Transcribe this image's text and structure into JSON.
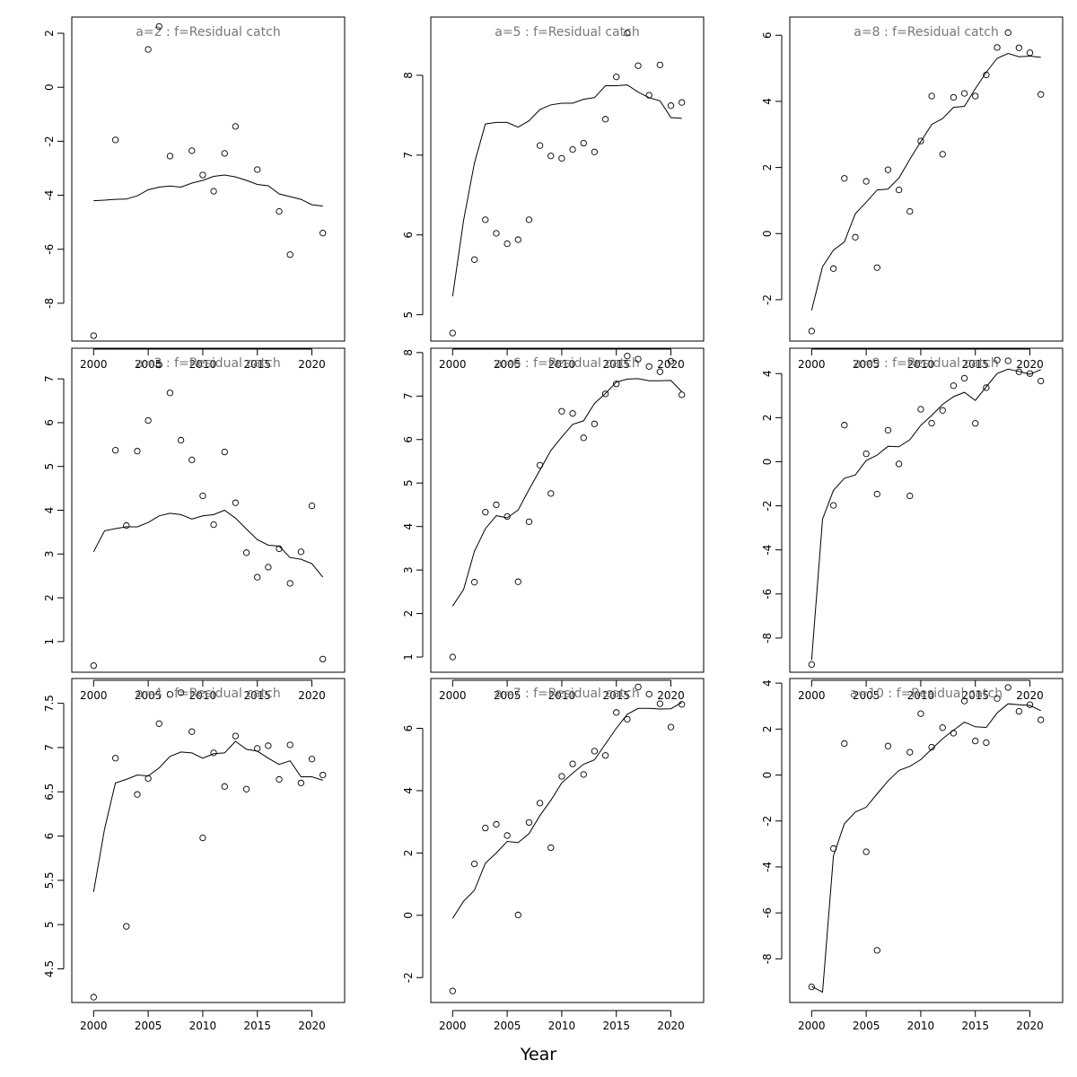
{
  "figure": {
    "xlabel": "Year"
  },
  "chart_data": [
    {
      "type": "scatter",
      "title": "a=2  :  f=Residual catch",
      "xlim": [
        1998,
        2023
      ],
      "ylim": [
        -9.4,
        2.6
      ],
      "xticks": [
        2000,
        2005,
        2010,
        2015,
        2020
      ],
      "yticks": [
        -8,
        -6,
        -4,
        -2,
        0,
        2
      ],
      "x": [
        2000,
        2002,
        2005,
        2006,
        2007,
        2009,
        2010,
        2011,
        2012,
        2013,
        2015,
        2017,
        2018,
        2021
      ],
      "y": [
        -9.2,
        -1.95,
        1.4,
        2.25,
        -2.55,
        -2.35,
        -3.25,
        -3.85,
        -2.45,
        -1.45,
        -3.05,
        -4.6,
        -6.2,
        -5.4
      ],
      "fit_x": [
        2000,
        2001,
        2002,
        2003,
        2004,
        2005,
        2006,
        2007,
        2008,
        2009,
        2010,
        2011,
        2012,
        2013,
        2014,
        2015,
        2016,
        2017,
        2018,
        2019,
        2020,
        2021
      ],
      "fit_y": [
        -4.2,
        -4.18,
        -4.15,
        -4.14,
        -4.02,
        -3.8,
        -3.7,
        -3.66,
        -3.7,
        -3.55,
        -3.45,
        -3.3,
        -3.25,
        -3.32,
        -3.45,
        -3.6,
        -3.65,
        -3.95,
        -4.05,
        -4.15,
        -4.35,
        -4.4
      ]
    },
    {
      "type": "scatter",
      "title": "a=3  :  f=Residual catch",
      "xlim": [
        1998,
        2023
      ],
      "ylim": [
        0.3,
        7.7
      ],
      "xticks": [
        2000,
        2005,
        2010,
        2015,
        2020
      ],
      "yticks": [
        1,
        2,
        3,
        4,
        5,
        6,
        7
      ],
      "x": [
        2000,
        2002,
        2003,
        2004,
        2005,
        2006,
        2007,
        2008,
        2009,
        2010,
        2011,
        2012,
        2013,
        2014,
        2015,
        2016,
        2017,
        2018,
        2019,
        2020,
        2021
      ],
      "y": [
        0.45,
        5.37,
        3.65,
        5.35,
        6.05,
        7.32,
        6.68,
        5.6,
        5.15,
        4.33,
        3.67,
        5.33,
        4.17,
        3.03,
        2.47,
        2.7,
        3.12,
        2.33,
        3.05,
        4.1,
        0.6
      ],
      "fit_x": [
        2000,
        2001,
        2002,
        2003,
        2004,
        2005,
        2006,
        2007,
        2008,
        2009,
        2010,
        2011,
        2012,
        2013,
        2014,
        2015,
        2016,
        2017,
        2018,
        2019,
        2020,
        2021
      ],
      "fit_y": [
        3.05,
        3.53,
        3.58,
        3.62,
        3.62,
        3.72,
        3.87,
        3.93,
        3.9,
        3.8,
        3.87,
        3.9,
        4.0,
        3.82,
        3.57,
        3.33,
        3.2,
        3.18,
        2.92,
        2.88,
        2.78,
        2.47
      ]
    },
    {
      "type": "scatter",
      "title": "a=4  :  f=Residual catch",
      "xlim": [
        1998,
        2023
      ],
      "ylim": [
        4.12,
        7.78
      ],
      "xticks": [
        2000,
        2005,
        2010,
        2015,
        2020
      ],
      "yticks": [
        4.5,
        5.0,
        5.5,
        6.0,
        6.5,
        7.0,
        7.5
      ],
      "x": [
        2000,
        2002,
        2003,
        2004,
        2005,
        2006,
        2007,
        2008,
        2009,
        2010,
        2011,
        2012,
        2013,
        2014,
        2015,
        2016,
        2017,
        2018,
        2019,
        2020,
        2021
      ],
      "y": [
        4.18,
        6.88,
        4.98,
        6.47,
        6.65,
        7.27,
        7.6,
        7.62,
        7.18,
        5.98,
        6.94,
        6.56,
        7.13,
        6.53,
        6.99,
        7.02,
        6.64,
        7.03,
        6.6,
        6.87,
        6.69
      ],
      "fit_x": [
        2000,
        2001,
        2002,
        2003,
        2004,
        2005,
        2006,
        2007,
        2008,
        2009,
        2010,
        2011,
        2012,
        2013,
        2014,
        2015,
        2016,
        2017,
        2018,
        2019,
        2020,
        2021
      ],
      "fit_y": [
        5.37,
        6.08,
        6.6,
        6.64,
        6.69,
        6.68,
        6.77,
        6.9,
        6.95,
        6.94,
        6.88,
        6.93,
        6.94,
        7.07,
        6.98,
        6.96,
        6.88,
        6.81,
        6.85,
        6.67,
        6.67,
        6.63
      ]
    },
    {
      "type": "scatter",
      "title": "a=5  :  f=Residual catch",
      "xlim": [
        1998,
        2023
      ],
      "ylim": [
        4.67,
        8.73
      ],
      "xticks": [
        2000,
        2005,
        2010,
        2015,
        2020
      ],
      "yticks": [
        5,
        6,
        7,
        8
      ],
      "x": [
        2000,
        2002,
        2003,
        2004,
        2005,
        2006,
        2007,
        2008,
        2009,
        2010,
        2011,
        2012,
        2013,
        2014,
        2015,
        2016,
        2017,
        2018,
        2019,
        2020,
        2021
      ],
      "y": [
        4.77,
        5.69,
        6.19,
        6.02,
        5.89,
        5.94,
        6.19,
        7.12,
        6.99,
        6.96,
        7.07,
        7.15,
        7.04,
        7.45,
        7.98,
        8.53,
        8.12,
        7.75,
        8.13,
        7.62,
        7.66
      ],
      "fit_x": [
        2000,
        2001,
        2002,
        2003,
        2004,
        2005,
        2006,
        2007,
        2008,
        2009,
        2010,
        2011,
        2012,
        2013,
        2014,
        2015,
        2016,
        2017,
        2018,
        2019,
        2020,
        2021
      ],
      "fit_y": [
        5.23,
        6.18,
        6.9,
        7.39,
        7.41,
        7.41,
        7.35,
        7.43,
        7.57,
        7.63,
        7.65,
        7.65,
        7.7,
        7.72,
        7.87,
        7.87,
        7.88,
        7.79,
        7.72,
        7.68,
        7.47,
        7.46
      ]
    },
    {
      "type": "scatter",
      "title": "a=6  :  f=Residual catch",
      "xlim": [
        1998,
        2023
      ],
      "ylim": [
        0.65,
        8.1
      ],
      "xticks": [
        2000,
        2005,
        2010,
        2015,
        2020
      ],
      "yticks": [
        1,
        2,
        3,
        4,
        5,
        6,
        7,
        8
      ],
      "x": [
        2000,
        2002,
        2003,
        2004,
        2005,
        2006,
        2007,
        2008,
        2009,
        2010,
        2011,
        2012,
        2013,
        2014,
        2015,
        2016,
        2017,
        2018,
        2019,
        2020,
        2021
      ],
      "y": [
        1.0,
        2.72,
        4.33,
        4.5,
        4.23,
        2.73,
        4.11,
        5.41,
        4.76,
        6.65,
        6.6,
        6.04,
        6.36,
        7.05,
        7.28,
        7.92,
        7.85,
        7.68,
        7.56,
        7.8,
        7.03
      ],
      "fit_x": [
        2000,
        2001,
        2002,
        2003,
        2004,
        2005,
        2006,
        2007,
        2008,
        2009,
        2010,
        2011,
        2012,
        2013,
        2014,
        2015,
        2016,
        2017,
        2018,
        2019,
        2020,
        2021
      ],
      "fit_y": [
        2.17,
        2.55,
        3.43,
        3.95,
        4.25,
        4.2,
        4.38,
        4.85,
        5.3,
        5.75,
        6.06,
        6.35,
        6.43,
        6.83,
        7.06,
        7.32,
        7.39,
        7.4,
        7.35,
        7.35,
        7.36,
        7.1
      ]
    },
    {
      "type": "scatter",
      "title": "a=7  :  f=Residual catch",
      "xlim": [
        1998,
        2023
      ],
      "ylim": [
        -2.8,
        7.6
      ],
      "xticks": [
        2000,
        2005,
        2010,
        2015,
        2020
      ],
      "yticks": [
        -2,
        0,
        2,
        4,
        6
      ],
      "x": [
        2000,
        2002,
        2003,
        2004,
        2005,
        2006,
        2007,
        2008,
        2009,
        2010,
        2011,
        2012,
        2013,
        2014,
        2015,
        2016,
        2017,
        2018,
        2019,
        2020,
        2021
      ],
      "y": [
        -2.43,
        1.65,
        2.8,
        2.92,
        2.56,
        0.01,
        2.98,
        3.6,
        2.17,
        4.46,
        4.86,
        4.52,
        5.27,
        5.13,
        6.51,
        6.29,
        7.33,
        7.1,
        6.79,
        6.04,
        6.77
      ],
      "fit_x": [
        2000,
        2001,
        2002,
        2003,
        2004,
        2005,
        2006,
        2007,
        2008,
        2009,
        2010,
        2011,
        2012,
        2013,
        2014,
        2015,
        2016,
        2017,
        2018,
        2019,
        2020,
        2021
      ],
      "fit_y": [
        -0.1,
        0.45,
        0.8,
        1.67,
        2.0,
        2.37,
        2.33,
        2.62,
        3.2,
        3.69,
        4.25,
        4.56,
        4.85,
        4.99,
        5.5,
        6.0,
        6.45,
        6.64,
        6.64,
        6.62,
        6.63,
        6.83
      ]
    },
    {
      "type": "scatter",
      "title": "a=8  :  f=Residual catch",
      "xlim": [
        1998,
        2023
      ],
      "ylim": [
        -3.25,
        6.55
      ],
      "xticks": [
        2000,
        2005,
        2010,
        2015,
        2020
      ],
      "yticks": [
        -2,
        0,
        2,
        4,
        6
      ],
      "x": [
        2000,
        2002,
        2003,
        2004,
        2005,
        2006,
        2007,
        2008,
        2009,
        2010,
        2011,
        2012,
        2013,
        2014,
        2015,
        2016,
        2017,
        2018,
        2019,
        2020,
        2021
      ],
      "y": [
        -2.95,
        -1.06,
        1.67,
        -0.11,
        1.58,
        -1.03,
        1.93,
        1.32,
        0.67,
        2.8,
        4.16,
        2.4,
        4.12,
        4.24,
        4.16,
        4.8,
        5.63,
        6.08,
        5.62,
        5.47,
        4.21
      ],
      "fit_x": [
        2000,
        2001,
        2002,
        2003,
        2004,
        2005,
        2006,
        2007,
        2008,
        2009,
        2010,
        2011,
        2012,
        2013,
        2014,
        2015,
        2016,
        2017,
        2018,
        2019,
        2020,
        2021
      ],
      "fit_y": [
        -2.32,
        -1.0,
        -0.5,
        -0.25,
        0.6,
        0.95,
        1.32,
        1.35,
        1.68,
        2.25,
        2.78,
        3.3,
        3.48,
        3.82,
        3.85,
        4.38,
        4.88,
        5.3,
        5.45,
        5.35,
        5.37,
        5.33
      ]
    },
    {
      "type": "scatter",
      "title": "a=9  :  f=Residual catch",
      "xlim": [
        1998,
        2023
      ],
      "ylim": [
        -9.55,
        5.15
      ],
      "xticks": [
        2000,
        2005,
        2010,
        2015,
        2020
      ],
      "yticks": [
        -8,
        -6,
        -4,
        -2,
        0,
        2,
        4
      ],
      "x": [
        2000,
        2002,
        2003,
        2005,
        2006,
        2007,
        2008,
        2009,
        2010,
        2011,
        2012,
        2013,
        2014,
        2015,
        2016,
        2017,
        2018,
        2019,
        2020,
        2021
      ],
      "y": [
        -9.2,
        -1.98,
        1.66,
        0.36,
        -1.47,
        1.43,
        -0.1,
        -1.55,
        2.38,
        1.75,
        2.33,
        3.45,
        3.79,
        1.74,
        3.36,
        4.61,
        4.58,
        4.08,
        4.0,
        3.66
      ],
      "fit_x": [
        2000,
        2001,
        2002,
        2003,
        2004,
        2005,
        2006,
        2007,
        2008,
        2009,
        2010,
        2011,
        2012,
        2013,
        2014,
        2015,
        2016,
        2017,
        2018,
        2019,
        2020,
        2021
      ],
      "fit_y": [
        -9.0,
        -2.6,
        -1.3,
        -0.75,
        -0.6,
        0.05,
        0.3,
        0.7,
        0.68,
        1.0,
        1.65,
        2.1,
        2.6,
        2.95,
        3.15,
        2.78,
        3.4,
        4.0,
        4.2,
        4.1,
        3.97,
        4.18
      ]
    },
    {
      "type": "scatter",
      "title": "a=10  :  f=Residual catch",
      "xlim": [
        1998,
        2023
      ],
      "ylim": [
        -9.9,
        4.2
      ],
      "xticks": [
        2000,
        2005,
        2010,
        2015,
        2020
      ],
      "yticks": [
        -8,
        -6,
        -4,
        -2,
        0,
        2,
        4
      ],
      "x": [
        2000,
        2002,
        2003,
        2005,
        2006,
        2007,
        2009,
        2010,
        2011,
        2012,
        2013,
        2014,
        2015,
        2016,
        2017,
        2018,
        2019,
        2020,
        2021
      ],
      "y": [
        -9.22,
        -3.2,
        1.37,
        -3.34,
        -7.63,
        1.26,
        0.99,
        2.67,
        1.21,
        2.06,
        1.82,
        3.22,
        1.48,
        1.41,
        3.33,
        3.81,
        2.77,
        3.06,
        2.4
      ],
      "fit_x": [
        2000,
        2001,
        2002,
        2003,
        2004,
        2005,
        2006,
        2007,
        2008,
        2009,
        2010,
        2011,
        2012,
        2013,
        2014,
        2015,
        2016,
        2017,
        2018,
        2019,
        2020,
        2021
      ],
      "fit_y": [
        -9.2,
        -9.45,
        -3.52,
        -2.12,
        -1.61,
        -1.4,
        -0.82,
        -0.26,
        0.2,
        0.38,
        0.67,
        1.13,
        1.58,
        1.95,
        2.3,
        2.1,
        2.07,
        2.7,
        3.1,
        3.06,
        3.03,
        2.8
      ]
    }
  ]
}
